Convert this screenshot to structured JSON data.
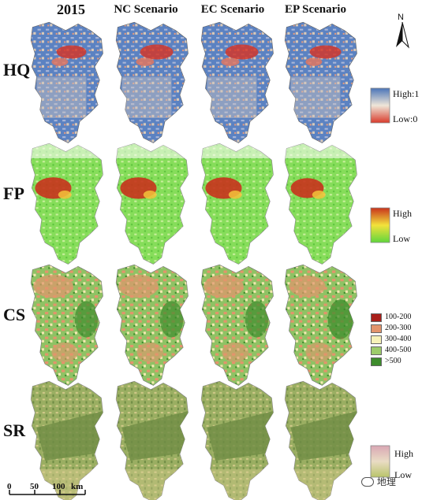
{
  "columns": [
    "2015",
    "NC Scenario",
    "EC Scenario",
    "EP Scenario"
  ],
  "rows": [
    {
      "label": "HQ"
    },
    {
      "label": "FP"
    },
    {
      "label": "CS"
    },
    {
      "label": "SR"
    }
  ],
  "north_label": "N",
  "legends": {
    "hq": {
      "high": "High:1",
      "low": "Low:0"
    },
    "fp": {
      "high": "High",
      "low": "Low"
    },
    "cs": {
      "classes": [
        {
          "label": "100-200",
          "color": "#a81f1a"
        },
        {
          "label": "200-300",
          "color": "#e3946c"
        },
        {
          "label": "300-400",
          "color": "#f7f2b8"
        },
        {
          "label": "400-500",
          "color": "#9dcc6b"
        },
        {
          "label": ">500",
          "color": "#3d8c2c"
        }
      ]
    },
    "sr": {
      "high": "High",
      "low": "Low"
    }
  },
  "scale": {
    "ticks": [
      "0",
      "50",
      "100"
    ],
    "unit": "km"
  },
  "watermark": "地理",
  "colors": {
    "hq_high": "#4a74b8",
    "hq_low": "#d93a2b",
    "fp_high": "#c8321c",
    "fp_low": "#7bd957",
    "sr_base": "#8aa35b"
  }
}
